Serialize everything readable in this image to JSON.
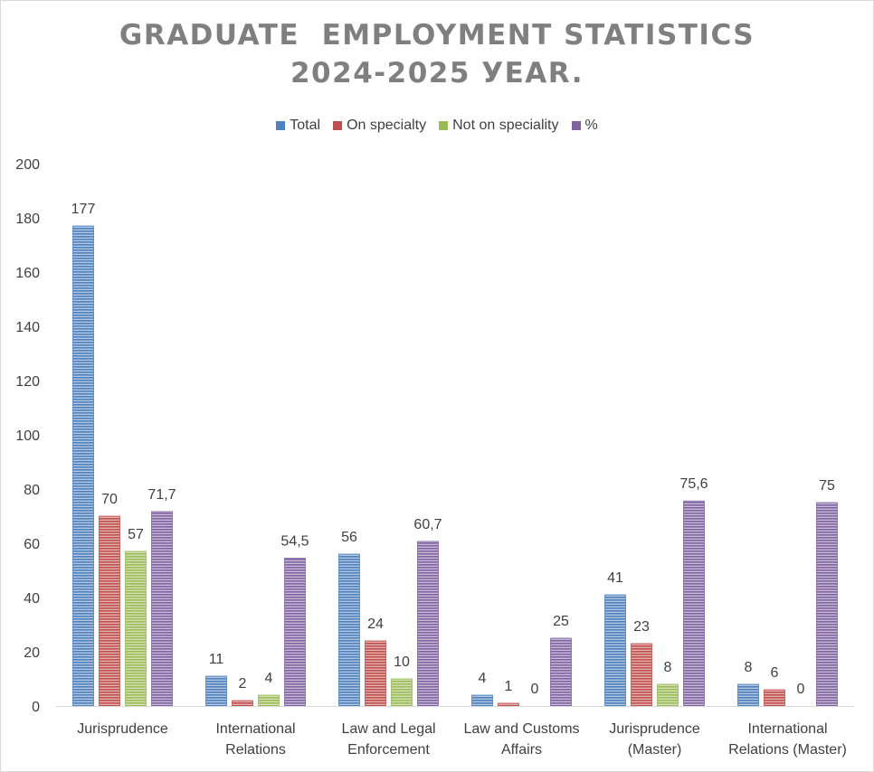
{
  "chart_data": {
    "type": "bar",
    "title_lines": [
      "GRADUATE  EMPLOYMENT STATISTICS",
      "2024-2025 УEAR."
    ],
    "categories": [
      [
        "Jurisprudence"
      ],
      [
        "International",
        "Relations"
      ],
      [
        "Law and Legal",
        "Enforcement"
      ],
      [
        "Law and Customs",
        "Affairs"
      ],
      [
        "Jurisprudence",
        "(Master)"
      ],
      [
        "International",
        "Relations (Master)"
      ]
    ],
    "series": [
      {
        "name": "Total",
        "color": "#4f81bd",
        "values": [
          177,
          11,
          56,
          4,
          41,
          8
        ],
        "labels": [
          "177",
          "11",
          "56",
          "4",
          "41",
          "8"
        ]
      },
      {
        "name": "On specialty",
        "color": "#c0504d",
        "values": [
          70,
          2,
          24,
          1,
          23,
          6
        ],
        "labels": [
          "70",
          "2",
          "24",
          "1",
          "23",
          "6"
        ]
      },
      {
        "name": "Not on speciality",
        "color": "#9bbb59",
        "values": [
          57,
          4,
          10,
          0,
          8,
          0
        ],
        "labels": [
          "57",
          "4",
          "10",
          "0",
          "8",
          "0"
        ]
      },
      {
        "name": "%",
        "color": "#8064a2",
        "values": [
          71.7,
          54.5,
          60.7,
          25,
          75.6,
          75
        ],
        "labels": [
          "71,7",
          "54,5",
          "60,7",
          "25",
          "75,6",
          "75"
        ]
      }
    ],
    "ylim": [
      0,
      200
    ],
    "yticks": [
      0,
      20,
      40,
      60,
      80,
      100,
      120,
      140,
      160,
      180,
      200
    ],
    "xlabel": "",
    "ylabel": "",
    "legend_position": "top-center",
    "grid": false
  }
}
